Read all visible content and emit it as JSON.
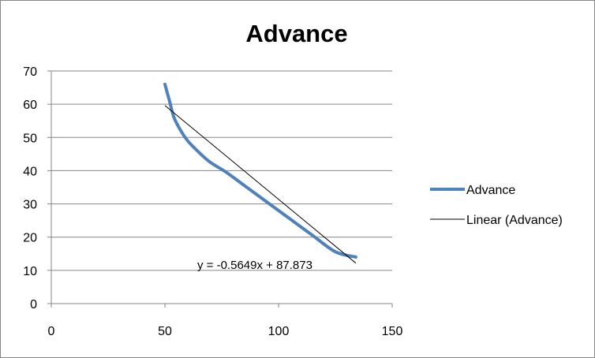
{
  "chart_data": {
    "type": "line",
    "title": "Advance",
    "xlabel": "",
    "ylabel": "",
    "xlim": [
      0,
      150
    ],
    "ylim": [
      0,
      70
    ],
    "x_ticks": [
      "0",
      "50",
      "100",
      "150"
    ],
    "y_ticks": [
      "0",
      "10",
      "20",
      "30",
      "40",
      "50",
      "60",
      "70"
    ],
    "grid": "horizontal",
    "legend_position": "right",
    "series": [
      {
        "name": "Advance",
        "color": "#4f81bd",
        "style": "smooth",
        "x": [
          50,
          52,
          54,
          57,
          60,
          65,
          70,
          77,
          85,
          95,
          105,
          115,
          125,
          134
        ],
        "y": [
          66,
          61,
          56,
          52,
          49,
          45.5,
          42.5,
          39.5,
          35.5,
          30.5,
          25.5,
          20.5,
          15.6,
          14
        ]
      },
      {
        "name": "Linear (Advance)",
        "color": "#000000",
        "style": "trendline",
        "slope": -0.5649,
        "intercept": 87.873,
        "x_range": [
          50,
          134
        ]
      }
    ],
    "annotations": [
      {
        "text": "y = -0.5649x + 87.873"
      }
    ]
  }
}
